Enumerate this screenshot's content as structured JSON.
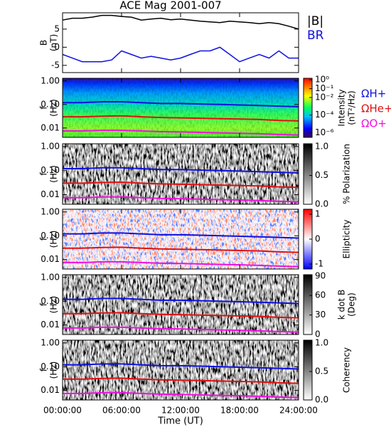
{
  "title": "ACE Mag 2001-007",
  "xaxis": {
    "xlim": [
      0,
      24
    ],
    "xlabel": "Time (UT)",
    "xticks": [
      {
        "value": 0,
        "label": "00:00:00"
      },
      {
        "value": 6,
        "label": "06:00:00"
      },
      {
        "value": 12,
        "label": "12:00:00"
      },
      {
        "value": 18,
        "label": "18:00:00"
      },
      {
        "value": 24,
        "label": "24:00:00"
      }
    ]
  },
  "gyrofrequencies": {
    "x": [
      0,
      2,
      4,
      6,
      8,
      10,
      12,
      14,
      16,
      18,
      20,
      22,
      24
    ],
    "series": [
      {
        "name": "ΩH+",
        "color": "#1010e0",
        "values": [
          0.12,
          0.12,
          0.13,
          0.13,
          0.12,
          0.11,
          0.11,
          0.105,
          0.1,
          0.095,
          0.09,
          0.085,
          0.08
        ]
      },
      {
        "name": "ΩHe+",
        "color": "#e01010",
        "values": [
          0.03,
          0.03,
          0.032,
          0.033,
          0.03,
          0.028,
          0.027,
          0.026,
          0.025,
          0.024,
          0.023,
          0.021,
          0.02
        ]
      },
      {
        "name": "ΩO+",
        "color": "#f010e0",
        "values": [
          0.0075,
          0.0075,
          0.008,
          0.008,
          0.0075,
          0.007,
          0.0068,
          0.0065,
          0.0062,
          0.006,
          0.0057,
          0.0053,
          0.005
        ]
      }
    ]
  },
  "chart_data": [
    {
      "type": "line",
      "ylabel": [
        "B",
        "(nT)"
      ],
      "ylim": [
        -7,
        9.5
      ],
      "yticks": [
        -5,
        0,
        5
      ],
      "x": [
        0,
        1,
        2,
        3,
        4,
        5,
        6,
        7,
        8,
        9,
        10,
        11,
        12,
        13,
        14,
        15,
        16,
        17,
        18,
        19,
        20,
        21,
        22,
        23,
        24
      ],
      "series": [
        {
          "name": "|B|",
          "color": "#000000",
          "values": [
            7.5,
            8,
            8,
            8.3,
            8.8,
            8.8,
            8.5,
            8.3,
            7.5,
            7.8,
            8,
            7.6,
            7.8,
            7.5,
            7.2,
            7,
            6.8,
            7.2,
            7,
            6.8,
            6.5,
            6.8,
            6.5,
            5.8,
            5
          ]
        },
        {
          "name": "BR",
          "color": "#1010e0",
          "values": [
            -2,
            -3,
            -4,
            -4,
            -4,
            -3.5,
            -1,
            -2,
            -3,
            -2.5,
            -3,
            -3.5,
            -3,
            -2,
            -1,
            -1,
            0,
            -2,
            -4,
            -3,
            -2,
            -3,
            -1,
            -3,
            -3
          ]
        }
      ]
    },
    {
      "type": "spectrogram",
      "ylabel": [
        "f",
        "(Hz)"
      ],
      "yscale": "log",
      "ylim": [
        0.004,
        1.3
      ],
      "yticks": [
        {
          "value": 1,
          "label": "1.00"
        },
        {
          "value": 0.1,
          "label": "0.10"
        },
        0.01
      ],
      "legend": true,
      "colorbar": {
        "label": [
          "Intensity",
          "(nT²/Hz)"
        ],
        "colormap": "rainbow",
        "scale": "log",
        "lim": [
          3e-07,
          1.5
        ],
        "ticks": [
          {
            "value": 1,
            "label": "10⁰"
          },
          {
            "value": 0.1,
            "label": "10⁻¹"
          },
          {
            "value": 0.01,
            "label": "10⁻²"
          },
          {
            "value": 0.0001,
            "label": "10⁻⁴"
          },
          {
            "value": 1e-06,
            "label": "10⁻⁶"
          }
        ]
      }
    },
    {
      "type": "spectrogram",
      "ylabel": [
        "f",
        "(Hz)"
      ],
      "yscale": "log",
      "ylim": [
        0.004,
        1.3
      ],
      "yticks": [
        {
          "value": 1,
          "label": "1.00"
        },
        {
          "value": 0.1,
          "label": "0.10"
        },
        0.01
      ],
      "colorbar": {
        "label": [
          "% Polarization"
        ],
        "colormap": "gray",
        "lim": [
          0,
          1.05
        ],
        "ticks": [
          {
            "value": 0,
            "label": "0.0"
          },
          {
            "value": 0.5,
            "label": "0.5"
          },
          {
            "value": 1,
            "label": "1.0"
          }
        ]
      }
    },
    {
      "type": "spectrogram",
      "ylabel": [
        "f",
        "(Hz)"
      ],
      "yscale": "log",
      "ylim": [
        0.004,
        1.3
      ],
      "yticks": [
        {
          "value": 1,
          "label": "1.00"
        },
        {
          "value": 0.1,
          "label": "0.10"
        },
        0.01
      ],
      "colorbar": {
        "label": [
          "Ellipticity"
        ],
        "colormap": "bwr",
        "lim": [
          -1.2,
          1.2
        ],
        "ticks": [
          -1,
          0,
          1
        ]
      }
    },
    {
      "type": "spectrogram",
      "ylabel": [
        "f",
        "(Hz)"
      ],
      "yscale": "log",
      "ylim": [
        0.004,
        1.3
      ],
      "yticks": [
        {
          "value": 1,
          "label": "1.00"
        },
        {
          "value": 0.1,
          "label": "0.10"
        },
        0.01
      ],
      "colorbar": {
        "label": [
          "k dot B",
          "(Deg)"
        ],
        "colormap": "gray",
        "lim": [
          0,
          92
        ],
        "ticks": [
          0,
          30,
          60,
          90
        ]
      }
    },
    {
      "type": "spectrogram",
      "ylabel": [
        "f",
        "(Hz)"
      ],
      "yscale": "log",
      "ylim": [
        0.004,
        1.3
      ],
      "yticks": [
        {
          "value": 1,
          "label": "1.00"
        },
        {
          "value": 0.1,
          "label": "0.10"
        },
        0.01
      ],
      "colorbar": {
        "label": [
          "Coherency"
        ],
        "colormap": "gray",
        "lim": [
          0,
          1.05
        ],
        "ticks": [
          {
            "value": 0,
            "label": "0.0"
          },
          {
            "value": 0.5,
            "label": "0.5"
          },
          {
            "value": 1,
            "label": "1.0"
          }
        ]
      }
    }
  ]
}
